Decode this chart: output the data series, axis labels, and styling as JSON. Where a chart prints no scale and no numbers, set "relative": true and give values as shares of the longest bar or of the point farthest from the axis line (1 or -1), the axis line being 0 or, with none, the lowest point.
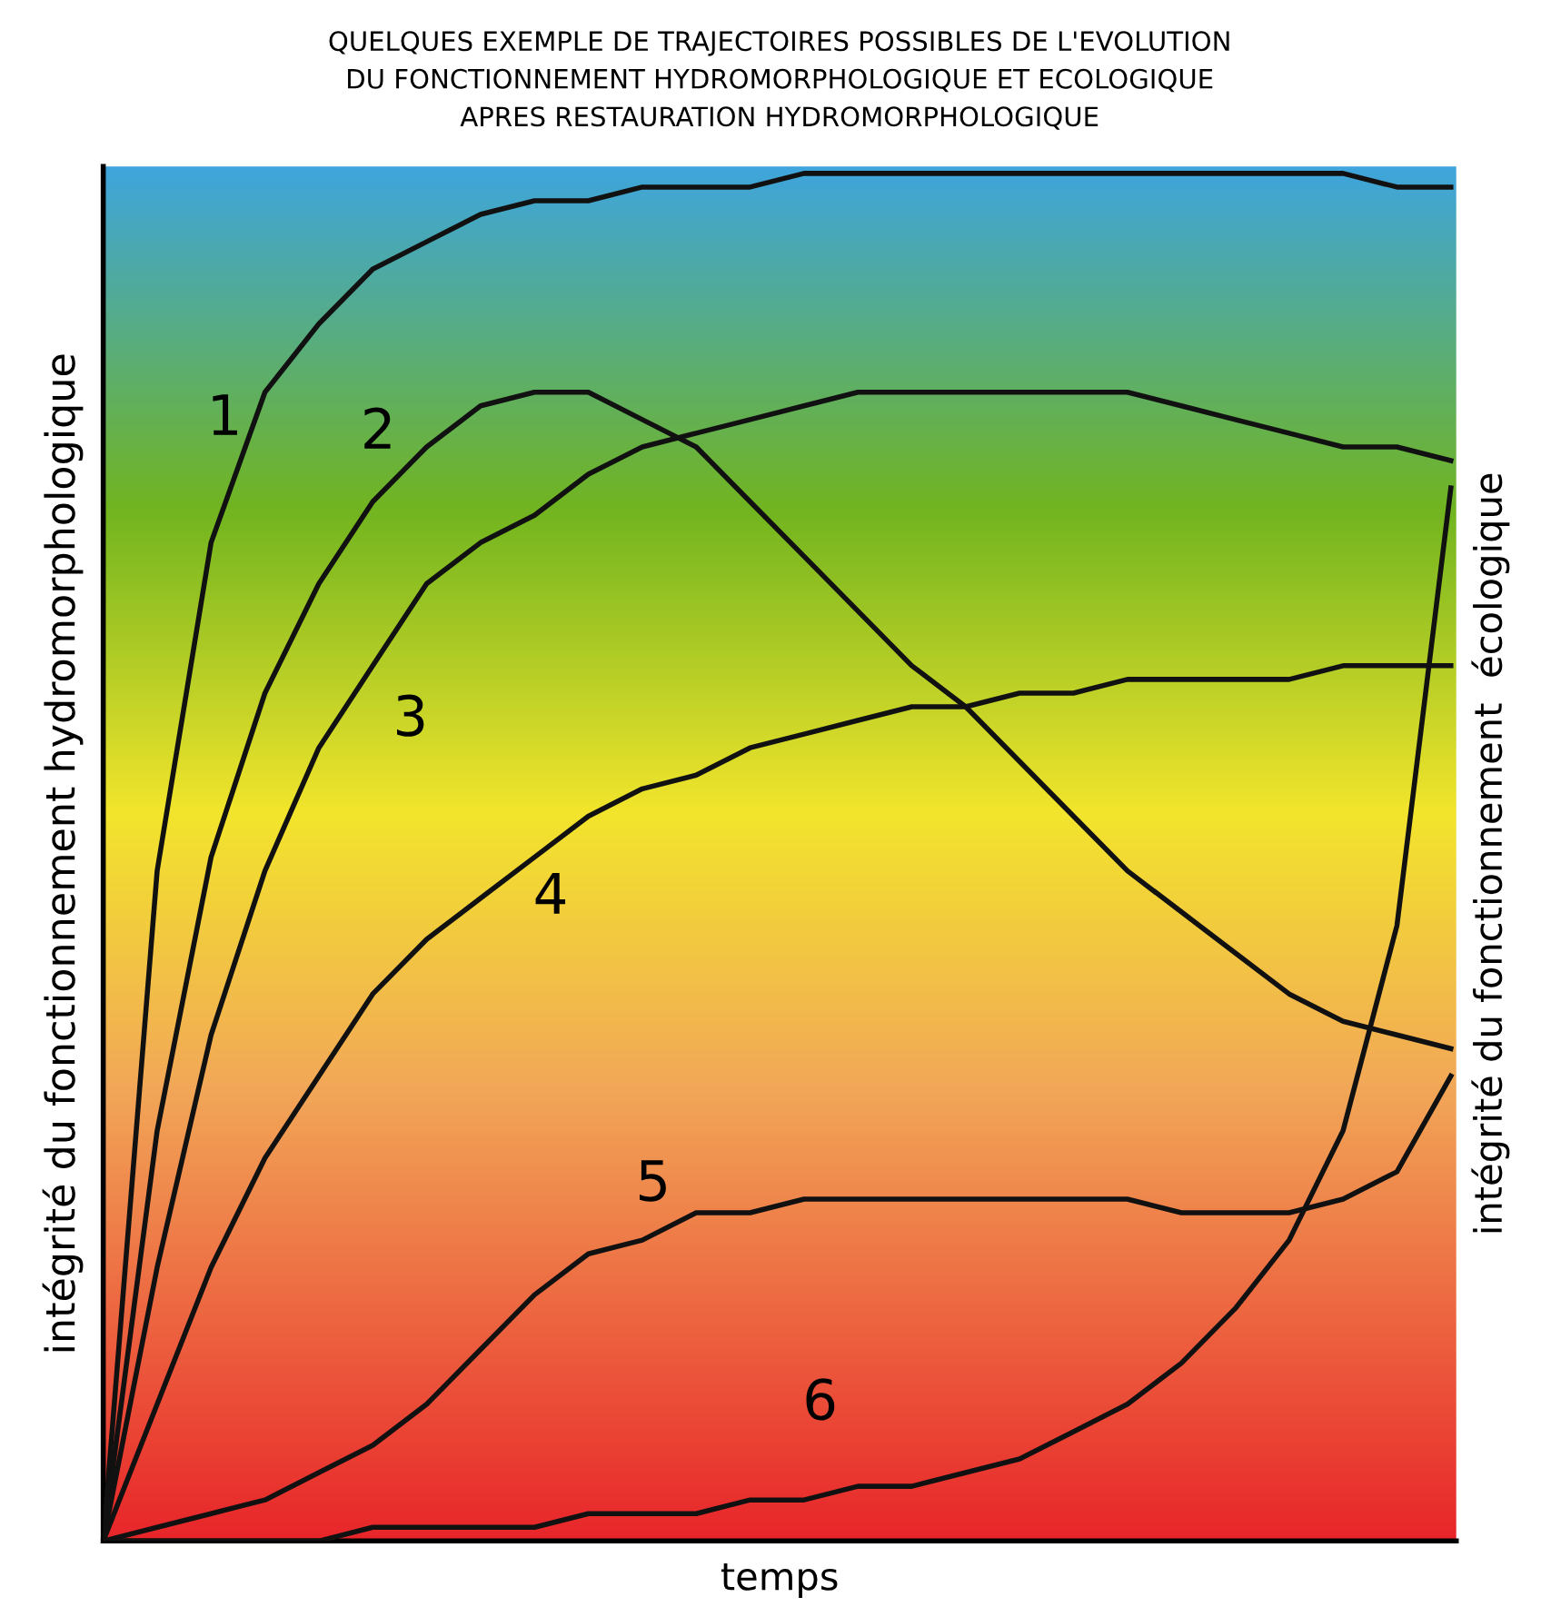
{
  "chart_data": {
    "type": "line",
    "relative": true,
    "title": "QUELQUES EXEMPLE DE TRAJECTOIRES POSSIBLES DE L'EVOLUTION\nDU FONCTIONNEMENT HYDROMORPHOLOGIQUE ET ECOLOGIQUE\nAPRES RESTAURATION HYDROMORPHOLOGIQUE",
    "xlabel": "temps",
    "ylabel": "intégrité du fonctionnement hydromorphologique",
    "y2label": "intégrité du fonctionnement  écologique",
    "categories": [
      null,
      null,
      null,
      null,
      null,
      null,
      null,
      null,
      null,
      null,
      null,
      null,
      null,
      null,
      null,
      null,
      null,
      null,
      null,
      null,
      null,
      null,
      null,
      null,
      null,
      null
    ],
    "legend": false,
    "marker": "none",
    "line_style": "solid",
    "series": [
      {
        "name": "1",
        "color": "#111111",
        "values": [
          0,
          0.49,
          0.73,
          0.84,
          0.89,
          0.93,
          0.95,
          0.97,
          0.98,
          0.98,
          0.99,
          0.99,
          0.99,
          1,
          1,
          1,
          1,
          1,
          1,
          1,
          1,
          1,
          1,
          1,
          0.99,
          0.99
        ]
      },
      {
        "name": "2",
        "color": "#111111",
        "values": [
          0,
          0.3,
          0.5,
          0.62,
          0.7,
          0.76,
          0.8,
          0.83,
          0.84,
          0.84,
          0.82,
          0.8,
          0.76,
          0.72,
          0.68,
          0.64,
          0.61,
          0.57,
          0.53,
          0.49,
          0.46,
          0.43,
          0.4,
          0.38,
          0.37,
          0.36
        ]
      },
      {
        "name": "3",
        "color": "#111111",
        "values": [
          0,
          0.2,
          0.37,
          0.49,
          0.58,
          0.64,
          0.7,
          0.73,
          0.75,
          0.78,
          0.8,
          0.81,
          0.82,
          0.83,
          0.84,
          0.84,
          0.84,
          0.84,
          0.84,
          0.84,
          0.83,
          0.82,
          0.81,
          0.8,
          0.8,
          0.79
        ]
      },
      {
        "name": "4",
        "color": "#111111",
        "values": [
          0,
          0.1,
          0.2,
          0.28,
          0.34,
          0.4,
          0.44,
          0.47,
          0.5,
          0.53,
          0.55,
          0.56,
          0.58,
          0.59,
          0.6,
          0.61,
          0.61,
          0.62,
          0.62,
          0.63,
          0.63,
          0.63,
          0.63,
          0.64,
          0.64,
          0.64
        ]
      },
      {
        "name": "5",
        "color": "#111111",
        "values": [
          0,
          0.01,
          0.02,
          0.03,
          0.05,
          0.07,
          0.1,
          0.14,
          0.18,
          0.21,
          0.22,
          0.24,
          0.24,
          0.25,
          0.25,
          0.25,
          0.25,
          0.25,
          0.25,
          0.25,
          0.24,
          0.24,
          0.24,
          0.25,
          0.27,
          0.34
        ]
      },
      {
        "name": "6",
        "color": "#111111",
        "values": [
          0,
          0,
          0,
          0,
          0,
          0.01,
          0.01,
          0.01,
          0.01,
          0.02,
          0.02,
          0.02,
          0.03,
          0.03,
          0.04,
          0.04,
          0.05,
          0.06,
          0.08,
          0.1,
          0.13,
          0.17,
          0.22,
          0.3,
          0.45,
          0.77
        ]
      }
    ]
  }
}
